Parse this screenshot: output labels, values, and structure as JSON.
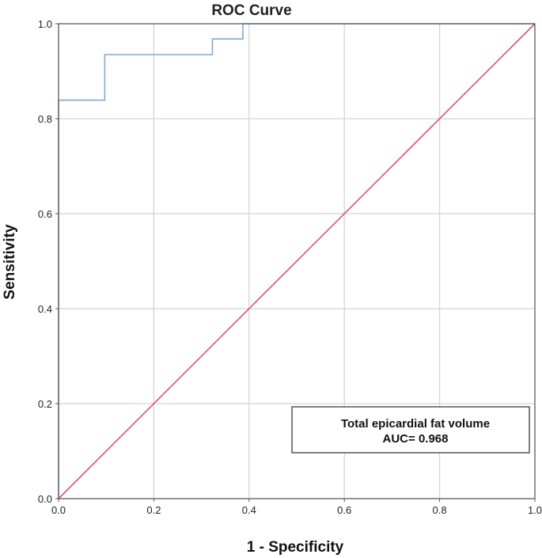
{
  "chart_data": {
    "type": "line",
    "title": "ROC Curve",
    "xlabel": "1 - Specificity",
    "ylabel": "Sensitivity",
    "xlim": [
      0,
      1
    ],
    "ylim": [
      0,
      1
    ],
    "grid": true,
    "x_ticks": [
      "0.0",
      "0.2",
      "0.4",
      "0.6",
      "0.8",
      "1.0"
    ],
    "y_ticks": [
      "0.0",
      "0.2",
      "0.4",
      "0.6",
      "0.8",
      "1.0"
    ],
    "series": [
      {
        "color": "#7ea6e0",
        "x": [
          0.0,
          0.0,
          0.097,
          0.097,
          0.323,
          0.323,
          0.387,
          0.387,
          1.0
        ],
        "y": [
          0.0,
          0.839,
          0.839,
          0.935,
          0.935,
          0.968,
          0.968,
          1.0,
          1.0
        ]
      },
      {
        "color": "#e0506e",
        "x": [
          0.0,
          1.0
        ],
        "y": [
          0.0,
          1.0
        ]
      }
    ],
    "annotation": {
      "line1": "Total epicardial fat volume",
      "line2": "AUC= 0.968",
      "placement": "bottom-right"
    }
  }
}
